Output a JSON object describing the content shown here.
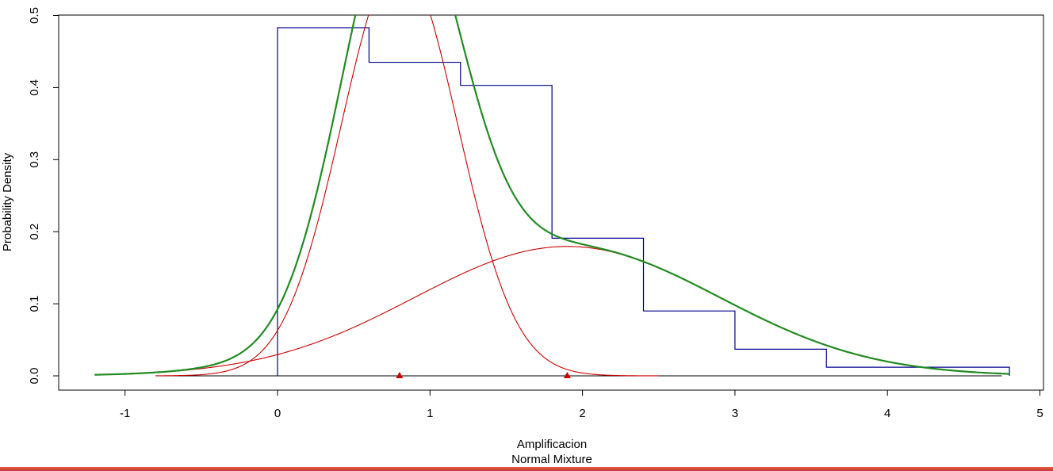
{
  "chart_data": {
    "type": "line",
    "title": "",
    "xlabel": "Amplificacion",
    "subtitle": "Normal Mixture",
    "ylabel": "Probability Density",
    "xlim": [
      -1.25,
      4.95
    ],
    "ylim": [
      -0.02,
      0.5
    ],
    "x_ticks": [
      -1,
      0,
      1,
      2,
      3,
      4,
      5
    ],
    "y_ticks": [
      0.0,
      0.1,
      0.2,
      0.3,
      0.4,
      0.5
    ],
    "x_tick_labels": [
      "-1",
      "0",
      "1",
      "2",
      "3",
      "4",
      "5"
    ],
    "y_tick_labels": [
      "0.0",
      "0.1",
      "0.2",
      "0.3",
      "0.4",
      "0.5"
    ],
    "grid": false,
    "legend": "none",
    "histogram": {
      "color": "#00008b",
      "bins": [
        {
          "x0": 0.0,
          "x1": 0.6,
          "density": 0.483
        },
        {
          "x0": 0.6,
          "x1": 1.2,
          "density": 0.435
        },
        {
          "x0": 1.2,
          "x1": 1.8,
          "density": 0.403
        },
        {
          "x0": 1.8,
          "x1": 2.4,
          "density": 0.191
        },
        {
          "x0": 2.4,
          "x1": 3.0,
          "density": 0.09
        },
        {
          "x0": 3.0,
          "x1": 3.6,
          "density": 0.037
        },
        {
          "x0": 3.6,
          "x1": 4.2,
          "density": 0.012
        },
        {
          "x0": 4.2,
          "x1": 4.8,
          "density": 0.012
        }
      ]
    },
    "components": [
      {
        "color": "#cc0000",
        "weight": 0.55,
        "mean": 0.8,
        "sd": 0.38,
        "x_range": [
          -0.8,
          2.5
        ]
      },
      {
        "color": "#cc0000",
        "weight": 0.45,
        "mean": 1.9,
        "sd": 1.0,
        "x_range": [
          -0.8,
          4.75
        ]
      }
    ],
    "mixture": {
      "color": "#228b22",
      "x_range": [
        -1.2,
        4.8
      ]
    },
    "means_markers": {
      "color": "#cc0000",
      "x": [
        0.8,
        1.9
      ]
    },
    "baseline": {
      "y": 0,
      "x_range": [
        -0.8,
        4.75
      ]
    }
  }
}
